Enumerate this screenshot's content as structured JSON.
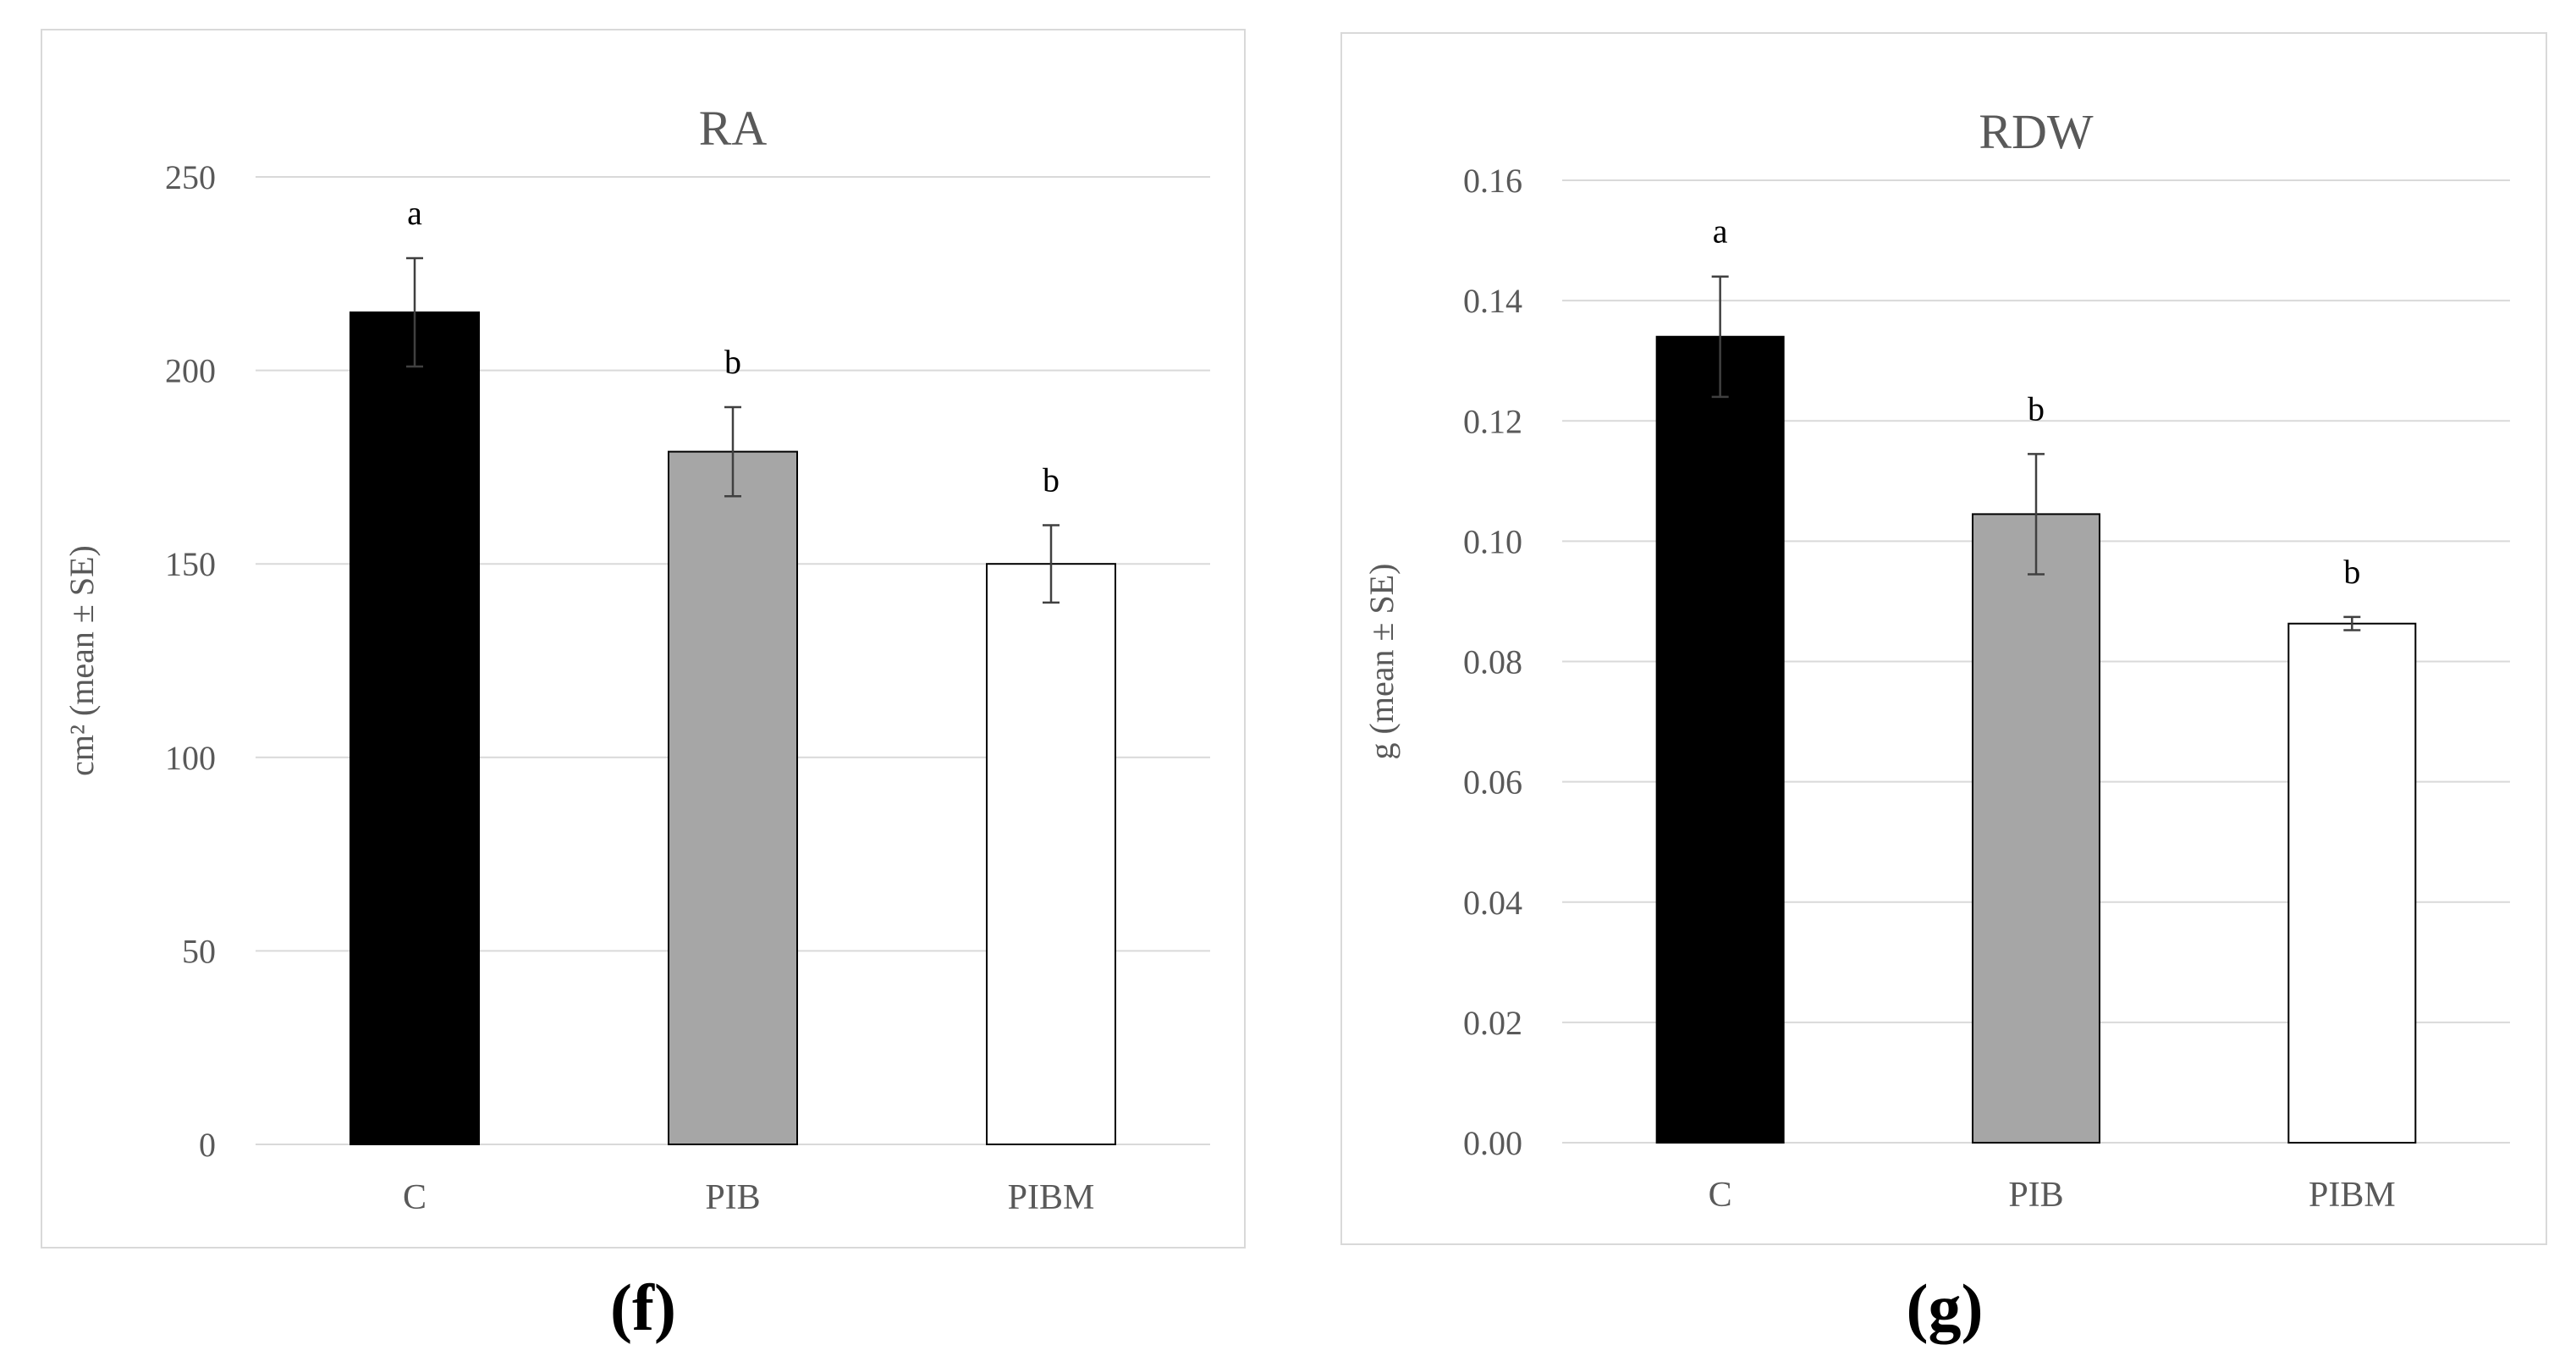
{
  "chart_data": [
    {
      "type": "bar",
      "panel_label": "(f)",
      "title": "RA",
      "xlabel": "",
      "ylabel": "cm² (mean ± SE)",
      "categories": [
        "C",
        "PIB",
        "PIBM"
      ],
      "values": [
        215,
        179,
        150
      ],
      "errors": [
        14,
        11.5,
        10
      ],
      "significance": [
        "a",
        "b",
        "b"
      ],
      "bar_colors": [
        "#000000",
        "#a6a6a6",
        "#ffffff"
      ],
      "ylim": [
        0,
        250
      ],
      "yticks": [
        0,
        50,
        100,
        150,
        200,
        250
      ],
      "ytick_labels": [
        "0",
        "50",
        "100",
        "150",
        "200",
        "250"
      ],
      "grid": true
    },
    {
      "type": "bar",
      "panel_label": "(g)",
      "title": "RDW",
      "xlabel": "",
      "ylabel": "g (mean ± SE)",
      "categories": [
        "C",
        "PIB",
        "PIBM"
      ],
      "values": [
        0.134,
        0.1045,
        0.0863
      ],
      "errors": [
        0.01,
        0.01,
        0.0011
      ],
      "significance": [
        "a",
        "b",
        "b"
      ],
      "bar_colors": [
        "#000000",
        "#a6a6a6",
        "#ffffff"
      ],
      "ylim": [
        0,
        0.16
      ],
      "yticks": [
        0,
        0.02,
        0.04,
        0.06,
        0.08,
        0.1,
        0.12,
        0.14,
        0.16
      ],
      "ytick_labels": [
        "0.00",
        "0.02",
        "0.04",
        "0.06",
        "0.08",
        "0.10",
        "0.12",
        "0.14",
        "0.16"
      ],
      "grid": true
    }
  ]
}
